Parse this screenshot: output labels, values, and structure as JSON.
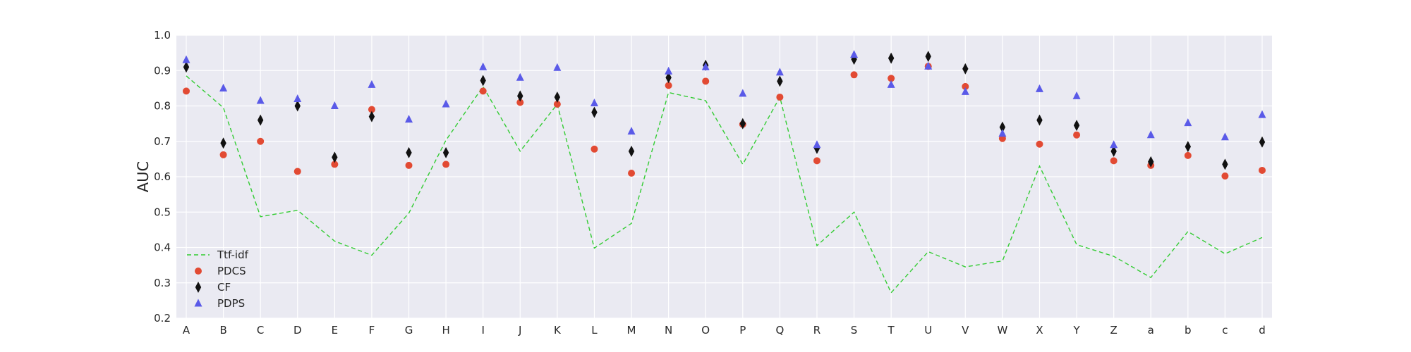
{
  "chart_data": {
    "type": "scatter",
    "ylabel": "AUC",
    "xlabel": "",
    "title": "",
    "ylim": [
      0.2,
      1.0
    ],
    "yticks": [
      "0.2",
      "0.3",
      "0.4",
      "0.5",
      "0.6",
      "0.7",
      "0.8",
      "0.9",
      "1.0"
    ],
    "grid": true,
    "legend_position": "lower-left",
    "categories": [
      "A",
      "B",
      "C",
      "D",
      "E",
      "F",
      "G",
      "H",
      "I",
      "J",
      "K",
      "L",
      "M",
      "N",
      "O",
      "P",
      "Q",
      "R",
      "S",
      "T",
      "U",
      "V",
      "W",
      "X",
      "Y",
      "Z",
      "a",
      "b",
      "c",
      "d"
    ],
    "series": [
      {
        "name": "Ttf-idf",
        "style": "dashed-line",
        "color": "#33cc33",
        "values": [
          0.885,
          0.795,
          0.487,
          0.505,
          0.418,
          0.378,
          0.497,
          0.703,
          0.855,
          0.672,
          0.805,
          0.398,
          0.468,
          0.838,
          0.815,
          0.635,
          0.825,
          0.405,
          0.5,
          0.272,
          0.388,
          0.345,
          0.362,
          0.63,
          0.408,
          0.375,
          0.315,
          0.445,
          0.382,
          0.428
        ]
      },
      {
        "name": "PDCS",
        "style": "circle",
        "color": "#e24a33",
        "values": [
          0.842,
          0.662,
          0.7,
          0.615,
          0.635,
          0.79,
          0.632,
          0.635,
          0.842,
          0.81,
          0.805,
          0.678,
          0.61,
          0.858,
          0.87,
          0.748,
          0.825,
          0.645,
          0.888,
          0.878,
          0.912,
          0.855,
          0.708,
          0.692,
          0.718,
          0.645,
          0.632,
          0.66,
          0.602,
          0.618
        ]
      },
      {
        "name": "CF",
        "style": "diamond",
        "color": "#111111",
        "values": [
          0.91,
          0.695,
          0.76,
          0.8,
          0.655,
          0.77,
          0.668,
          0.668,
          0.872,
          0.828,
          0.825,
          0.782,
          0.672,
          0.88,
          0.915,
          0.75,
          0.87,
          0.68,
          0.932,
          0.935,
          0.94,
          0.905,
          0.74,
          0.76,
          0.745,
          0.672,
          0.642,
          0.685,
          0.635,
          0.698
        ]
      },
      {
        "name": "PDPS",
        "style": "triangle",
        "color": "#5a5ae8",
        "values": [
          0.93,
          0.85,
          0.815,
          0.82,
          0.8,
          0.86,
          0.762,
          0.805,
          0.91,
          0.88,
          0.908,
          0.808,
          0.728,
          0.898,
          0.91,
          0.835,
          0.895,
          0.69,
          0.945,
          0.86,
          0.912,
          0.84,
          0.722,
          0.848,
          0.828,
          0.69,
          0.718,
          0.752,
          0.712,
          0.775
        ]
      }
    ]
  }
}
